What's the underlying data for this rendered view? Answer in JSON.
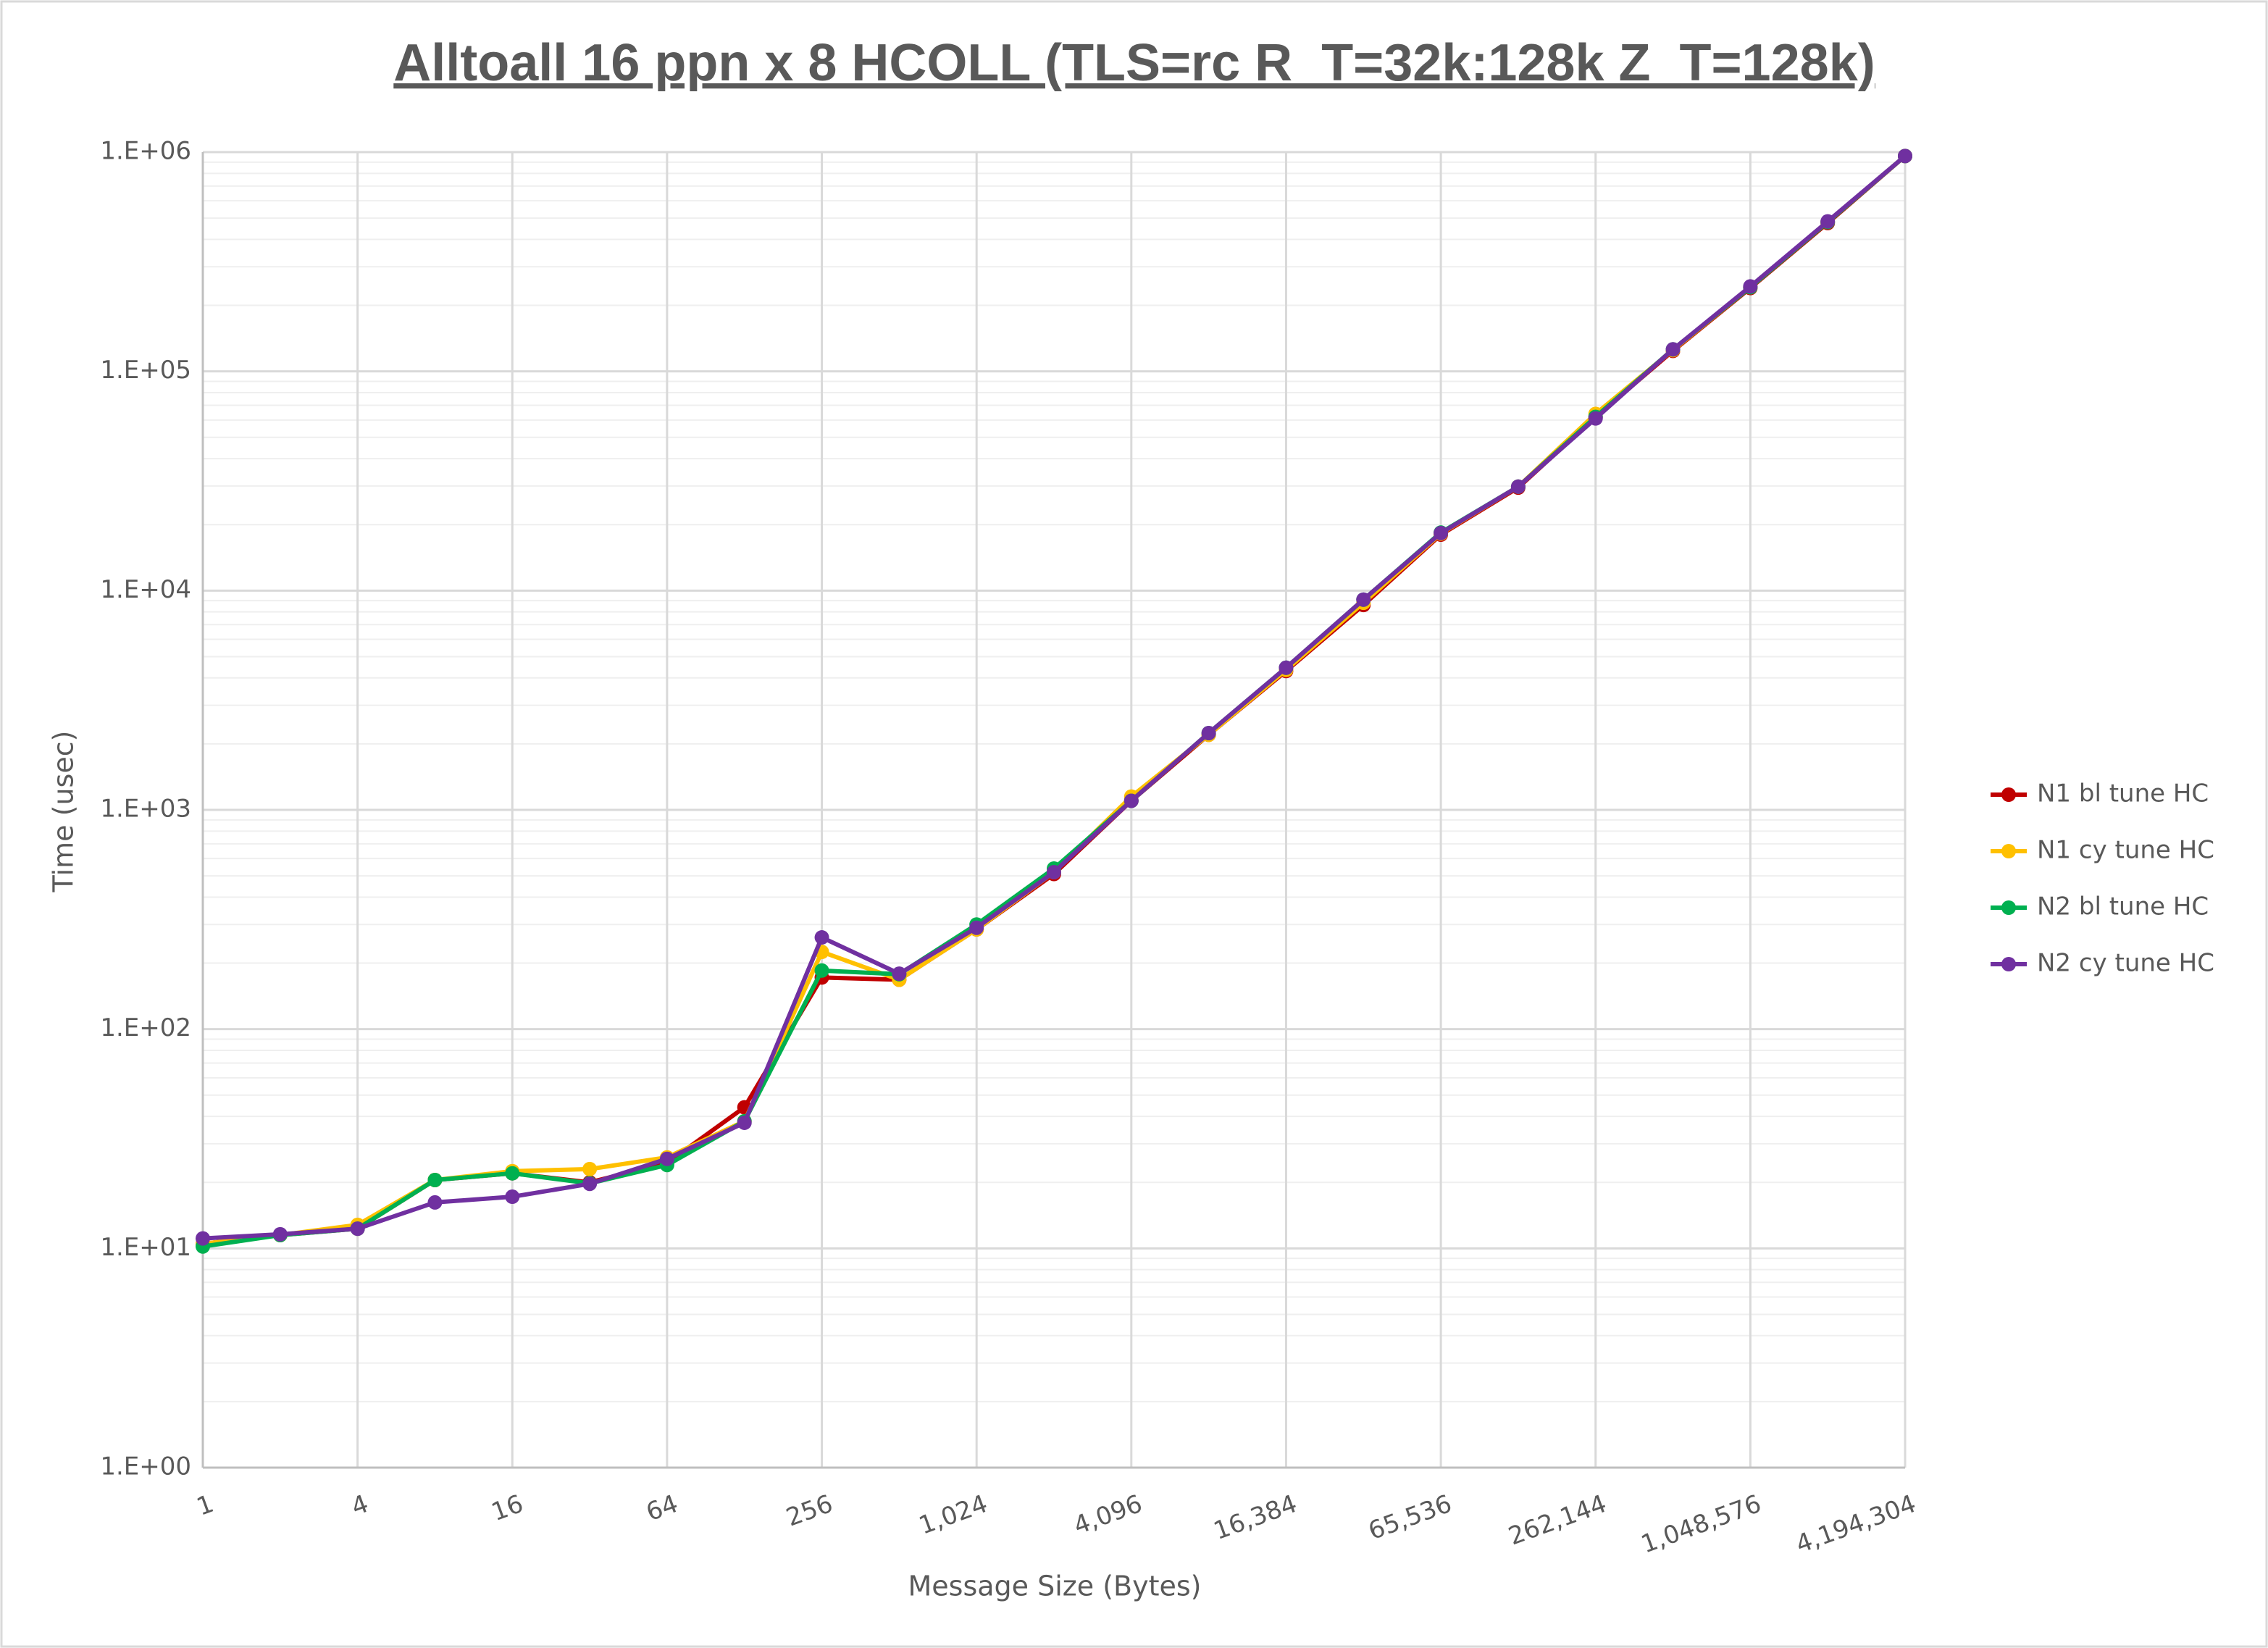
{
  "chart_data": {
    "type": "line",
    "title": "Alltoall 16 ppn x 8 HCOLL (TLS=rc R_T=32k:128k Z_T=128k)",
    "x_label": "Message Size (Bytes)",
    "y_label": "Time (usec)",
    "x": [
      1,
      2,
      4,
      8,
      16,
      32,
      64,
      128,
      256,
      512,
      1024,
      2048,
      4096,
      8192,
      16384,
      32768,
      65536,
      131072,
      262144,
      524288,
      1048576,
      2097152,
      4194304
    ],
    "series": [
      {
        "name": "N1 bl tune HC",
        "color": "#c00000",
        "values": [
          10.5,
          11.5,
          12.3,
          20.5,
          22,
          20,
          24.5,
          44,
          172,
          168,
          285,
          510,
          1100,
          2200,
          4300,
          8600,
          18000,
          29500,
          62000,
          124000,
          240000,
          475000,
          960000
        ]
      },
      {
        "name": "N1 cy tune HC",
        "color": "#ffc000",
        "values": [
          10.5,
          11.5,
          12.8,
          20.5,
          22.5,
          23,
          26,
          38,
          225,
          168,
          285,
          520,
          1150,
          2200,
          4350,
          8800,
          18200,
          29800,
          64000,
          125000,
          242000,
          480000,
          960000
        ]
      },
      {
        "name": "N2 bl tune HC",
        "color": "#00b050",
        "values": [
          10.2,
          11.5,
          12.3,
          20.5,
          22,
          19.8,
          24,
          38,
          185,
          178,
          300,
          540,
          1100,
          2240,
          4450,
          9100,
          18400,
          29800,
          62000,
          126000,
          242000,
          480000,
          960000
        ]
      },
      {
        "name": "N2 cy tune HC",
        "color": "#7030a0",
        "values": [
          11.1,
          11.6,
          12.3,
          16.2,
          17.2,
          19.7,
          25.6,
          37.4,
          262,
          179,
          290,
          520,
          1100,
          2240,
          4450,
          9100,
          18300,
          29800,
          61000,
          126000,
          244000,
          483000,
          960000
        ]
      }
    ],
    "x_log_base": 2,
    "y_log": true,
    "xlim": [
      1,
      4194304
    ],
    "xticks": [
      1,
      4,
      16,
      64,
      256,
      {
        "value": 1024,
        "label": "1,024"
      },
      {
        "value": 4096,
        "label": "4,096"
      },
      {
        "value": 16384,
        "label": "16,384"
      },
      {
        "value": 65536,
        "label": "65,536"
      },
      {
        "value": 262144,
        "label": "262,144"
      },
      {
        "value": 1048576,
        "label": "1,048,576"
      },
      {
        "value": 4194304,
        "label": "4,194,304"
      }
    ],
    "ylim": [
      1,
      1000000
    ],
    "yticks": [
      {
        "value": 1,
        "label": "1.E+00"
      },
      {
        "value": 10,
        "label": "1.E+01"
      },
      {
        "value": 100,
        "label": "1.E+02"
      },
      {
        "value": 1000,
        "label": "1.E+03"
      },
      {
        "value": 10000,
        "label": "1.E+04"
      },
      {
        "value": 100000,
        "label": "1.E+05"
      },
      {
        "value": 1000000,
        "label": "1.E+06"
      }
    ],
    "grid": true,
    "minor_grid": true,
    "legend": "right"
  }
}
